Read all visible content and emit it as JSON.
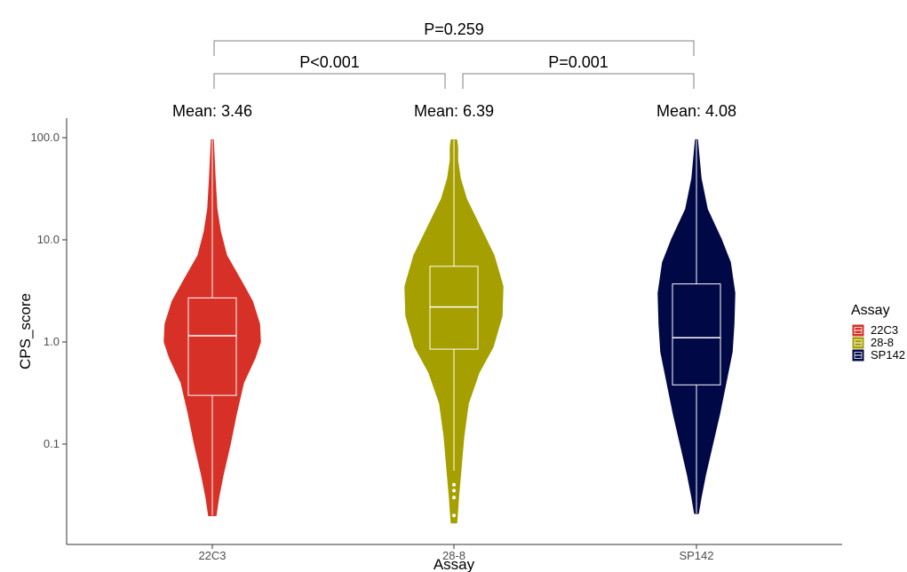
{
  "chart_data": {
    "type": "violin",
    "xlabel": "Assay",
    "ylabel": "CPS_score",
    "y_scale": "log10",
    "ylim": [
      0.012,
      160
    ],
    "y_ticks": [
      0.1,
      1.0,
      10.0,
      100.0
    ],
    "y_tick_labels": [
      "0.1",
      "1.0",
      "10.0",
      "100.0"
    ],
    "categories": [
      "22C3",
      "28-8",
      "SP142"
    ],
    "series": [
      {
        "name": "22C3",
        "color": "#d73027",
        "min": 0.02,
        "q1": 0.3,
        "median": 1.15,
        "q3": 2.7,
        "max": 95,
        "mean_label": "Mean: 3.46",
        "outliers": []
      },
      {
        "name": "28-8",
        "color": "#a5a000",
        "min": 0.055,
        "q1": 0.85,
        "median": 2.2,
        "q3": 5.5,
        "max": 95,
        "mean_label": "Mean: 6.39",
        "outliers": [
          0.04,
          0.035,
          0.03,
          0.02
        ]
      },
      {
        "name": "SP142",
        "color": "#000845",
        "min": 0.021,
        "q1": 0.38,
        "median": 1.1,
        "q3": 3.7,
        "max": 95,
        "mean_label": "Mean: 4.08",
        "outliers": []
      }
    ],
    "comparisons": [
      {
        "from": "22C3",
        "to": "28-8",
        "label": "P<0.001"
      },
      {
        "from": "28-8",
        "to": "SP142",
        "label": "P=0.001"
      },
      {
        "from": "22C3",
        "to": "SP142",
        "label": "P=0.259"
      }
    ],
    "legend": {
      "title": "Assay",
      "position": "right",
      "items": [
        "22C3",
        "28-8",
        "SP142"
      ]
    },
    "grid": false
  }
}
